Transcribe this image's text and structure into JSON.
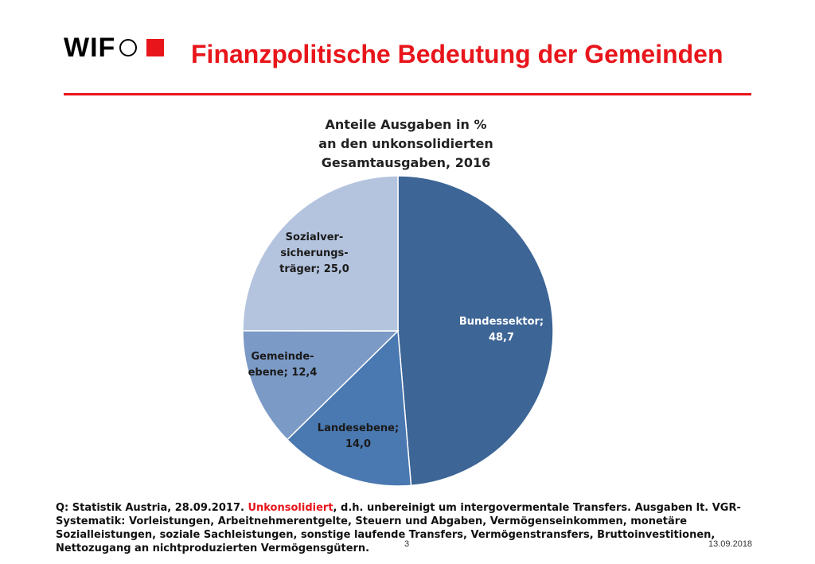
{
  "header": {
    "logo_text": "WIF",
    "title": "Finanzpolitische Bedeutung der Gemeinden"
  },
  "colors": {
    "accent": "#e8151b",
    "bundessektor": "#3d6596",
    "landesebene": "#4a78b0",
    "gemeindeebene": "#7b9ac6",
    "sozialversicherung": "#b4c4de"
  },
  "chart_data": {
    "type": "pie",
    "title_lines": [
      "Anteile Ausgaben in %",
      "an den unkonsolidierten",
      "Gesamtausgaben, 2016"
    ],
    "legend": "none",
    "slices": [
      {
        "label_lines": [
          "Bundessektor;",
          "48,7"
        ],
        "value": 48.7,
        "color": "#3d6596",
        "text_color": "#ffffff"
      },
      {
        "label_lines": [
          "Landesebene;",
          "14,0"
        ],
        "value": 14.0,
        "color": "#4a78b0",
        "text_color": "#1a1a1a"
      },
      {
        "label_lines": [
          "Gemeinde-",
          "ebene; 12,4"
        ],
        "value": 12.4,
        "color": "#7b9ac6",
        "text_color": "#1a1a1a"
      },
      {
        "label_lines": [
          "Sozialver-",
          "sicherungs-",
          "träger; 25,0"
        ],
        "value": 25.0,
        "color": "#b4c4de",
        "text_color": "#1a1a1a"
      }
    ]
  },
  "source": {
    "prefix": "Q: Statistik Austria, 28.09.2017. ",
    "highlight": "Unkonsolidiert",
    "rest": ", d.h. unbereinigt um intergovermentale Transfers.  Ausgaben lt. VGR-Systematik: Vorleistungen, Arbeitnehmerentgelte, Steuern und Abgaben, Vermögenseinkommen, monetäre Sozialleistungen, soziale Sachleistungen, sonstige laufende Transfers, Vermögenstransfers, Bruttoinvestitionen, Nettozugang an nichtproduzierten Vermögensgütern."
  },
  "footer": {
    "page_number": "3",
    "date": "13.09.2018"
  }
}
